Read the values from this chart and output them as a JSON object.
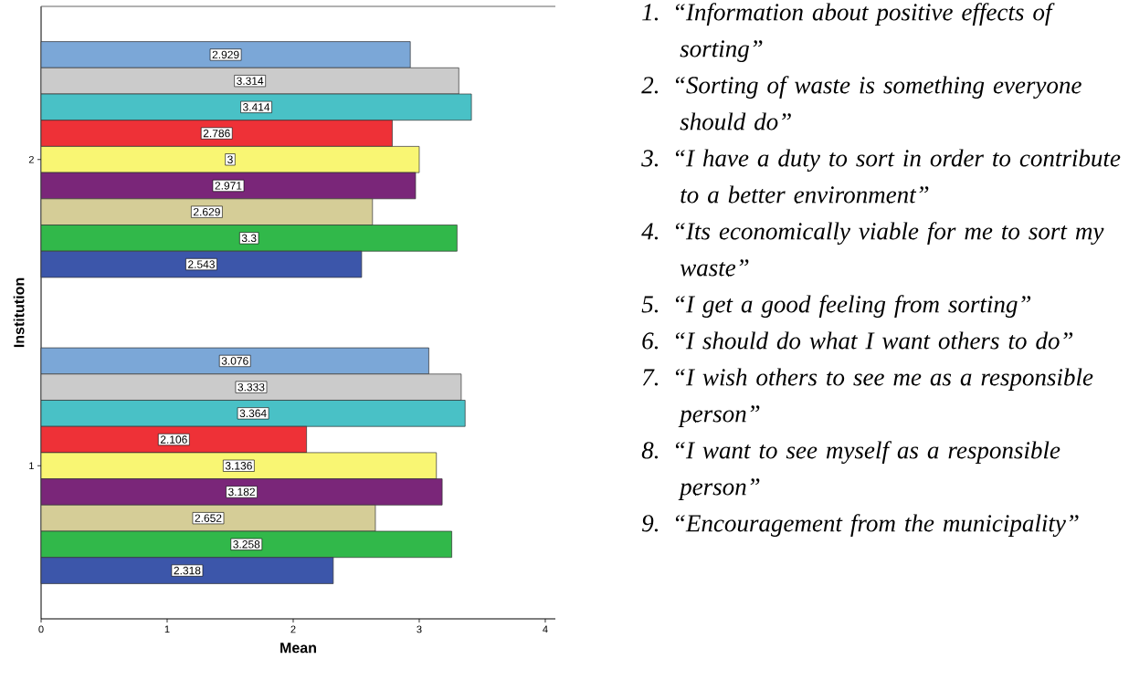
{
  "chart_data": {
    "type": "bar",
    "orientation": "horizontal",
    "xlabel": "Mean",
    "ylabel": "Institution",
    "categories": [
      "2",
      "1"
    ],
    "series": [
      {
        "color": "#7ba7d7",
        "values": [
          2.929,
          3.076
        ]
      },
      {
        "color": "#cbcbcb",
        "values": [
          3.314,
          3.333
        ]
      },
      {
        "color": "#49c1c6",
        "values": [
          3.414,
          3.364
        ]
      },
      {
        "color": "#ee3137",
        "values": [
          2.786,
          2.106
        ]
      },
      {
        "color": "#f9f673",
        "values": [
          3,
          3.136
        ]
      },
      {
        "color": "#7a2679",
        "values": [
          2.971,
          3.182
        ]
      },
      {
        "color": "#d5cd97",
        "values": [
          2.629,
          2.652
        ]
      },
      {
        "color": "#31b84a",
        "values": [
          3.3,
          3.258
        ]
      },
      {
        "color": "#3c56aa",
        "values": [
          2.543,
          2.318
        ]
      }
    ],
    "xlim": [
      0,
      4.08
    ],
    "xticks": [
      0,
      1,
      2,
      3,
      4
    ],
    "grid": false,
    "data_labels": true,
    "annotations": [
      "1. “Information about positive effects of sorting”",
      "2. “Sorting of waste is something everyone should do”",
      "3. “I have a duty to sort in order to contribute to a better environment”",
      "4. “Its economically viable for me to sort my waste”",
      "5. “I get a good feeling from sorting”",
      "6. “I should do what I want others to do”",
      "7. “I wish others to see me as a responsible person”",
      "8. “I want to see myself as a responsible person”",
      "9. “Encouragement from the municipality”"
    ]
  }
}
